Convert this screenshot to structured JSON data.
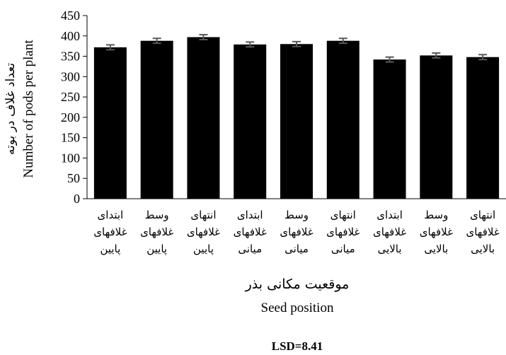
{
  "chart_data": {
    "type": "bar",
    "categories": [
      [
        "ابتدای",
        "غلافهای",
        "پایین"
      ],
      [
        "وسط",
        "غلافهای",
        "پایین"
      ],
      [
        "انتهای",
        "غلافهای",
        "پایین"
      ],
      [
        "ابتدای",
        "غلافهای",
        "میانی"
      ],
      [
        "وسط",
        "غلافهای",
        "میانی"
      ],
      [
        "انتهای",
        "غلافهای",
        "میانی"
      ],
      [
        "ابتدای",
        "غلافهای",
        "بالایی"
      ],
      [
        "وسط",
        "غلافهای",
        "بالایی"
      ],
      [
        "انتهای",
        "غلافهای",
        "بالایی"
      ]
    ],
    "values": [
      372,
      388,
      397,
      379,
      380,
      388,
      342,
      352,
      348
    ],
    "errors": [
      6,
      6,
      6,
      6,
      6,
      6,
      6,
      6,
      6
    ],
    "bar_color": "#000000",
    "error_color": "#595959",
    "ylim": [
      0,
      450
    ],
    "yticks": [
      0,
      50,
      100,
      150,
      200,
      250,
      300,
      350,
      400,
      450
    ],
    "ylabel_fa": "تعداد غلاف در بوته",
    "ylabel_en": "Number of pods per plant",
    "xlabel_fa": "موقعیت مکانی بذر",
    "xlabel_en": "Seed position",
    "footnote": "LSD=8.41",
    "grid": false,
    "legend": "none"
  }
}
